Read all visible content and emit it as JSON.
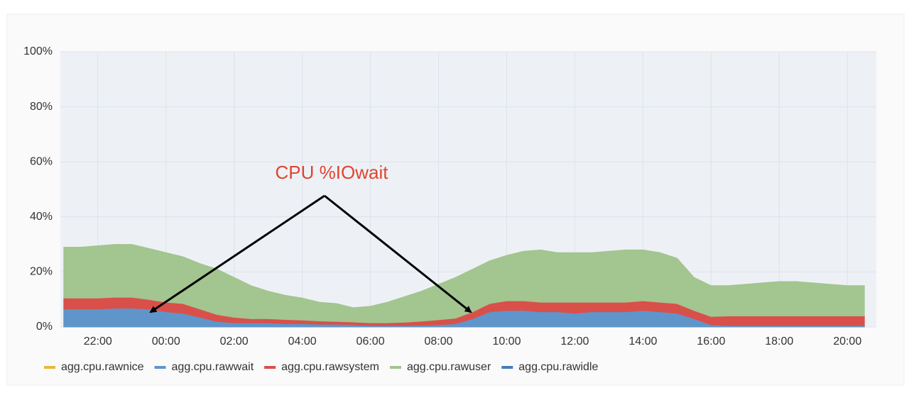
{
  "chart_data": {
    "type": "stacked-area",
    "annotation": "CPU %IOwait",
    "x": [
      21,
      21.5,
      22,
      22.5,
      23,
      23.5,
      24,
      24.5,
      25,
      25.5,
      26,
      26.5,
      27,
      27.5,
      28,
      28.5,
      29,
      29.5,
      30,
      30.5,
      31,
      31.5,
      32,
      32.5,
      33,
      33.5,
      34,
      34.5,
      35,
      35.5,
      36,
      36.5,
      37,
      37.5,
      38,
      38.5,
      39,
      39.5,
      40,
      40.5,
      41,
      41.5,
      42,
      42.5,
      43,
      43.5,
      44,
      44.5
    ],
    "xlim": [
      20.9,
      44.85
    ],
    "xticks": [
      {
        "value": 22,
        "label": "22:00"
      },
      {
        "value": 24,
        "label": "00:00"
      },
      {
        "value": 26,
        "label": "02:00"
      },
      {
        "value": 28,
        "label": "04:00"
      },
      {
        "value": 30,
        "label": "06:00"
      },
      {
        "value": 32,
        "label": "08:00"
      },
      {
        "value": 34,
        "label": "10:00"
      },
      {
        "value": 36,
        "label": "12:00"
      },
      {
        "value": 38,
        "label": "14:00"
      },
      {
        "value": 40,
        "label": "16:00"
      },
      {
        "value": 42,
        "label": "18:00"
      },
      {
        "value": 44,
        "label": "20:00"
      }
    ],
    "ylim": [
      0,
      100
    ],
    "yticks": [
      {
        "value": 0,
        "label": "0%"
      },
      {
        "value": 20,
        "label": "20%"
      },
      {
        "value": 40,
        "label": "40%"
      },
      {
        "value": 60,
        "label": "60%"
      },
      {
        "value": 80,
        "label": "80%"
      },
      {
        "value": 100,
        "label": "100%"
      }
    ],
    "grid": true,
    "legend": "bottom",
    "series": [
      {
        "name": "agg.cpu.rawnice",
        "color": "#eab839",
        "values": [
          0,
          0,
          0,
          0,
          0,
          0,
          0,
          0,
          0,
          0,
          0,
          0,
          0,
          0,
          0,
          0,
          0,
          0,
          0,
          0,
          0,
          0,
          0,
          0,
          0,
          0,
          0,
          0,
          0,
          0,
          0,
          0,
          0,
          0,
          0,
          0,
          0,
          0,
          0,
          0,
          0,
          0,
          0,
          0,
          0,
          0,
          0,
          0
        ]
      },
      {
        "name": "agg.cpu.rawwait",
        "color": "#5f95cb",
        "values": [
          6.5,
          6.5,
          6.5,
          6.8,
          6.8,
          6.5,
          5.5,
          5,
          3.5,
          2,
          1.5,
          1.5,
          1.5,
          1.2,
          1.2,
          1,
          1,
          0.8,
          0.5,
          0.5,
          0.5,
          0.6,
          0.8,
          1.2,
          3,
          5.5,
          6,
          6,
          5.5,
          5.5,
          5,
          5.5,
          5.5,
          5.5,
          6,
          5.5,
          5,
          3,
          0.8,
          0.5,
          0.5,
          0.5,
          0.5,
          0.5,
          0.5,
          0.5,
          0.5,
          0.5
        ]
      },
      {
        "name": "agg.cpu.rawsystem",
        "color": "#d9504a",
        "values": [
          4,
          4,
          4,
          4,
          4,
          3.5,
          3.5,
          3.5,
          3,
          2.5,
          2,
          1.5,
          1.5,
          1.5,
          1.3,
          1.2,
          1,
          1,
          1,
          1,
          1.2,
          1.5,
          1.8,
          2,
          2.5,
          3,
          3.5,
          3.5,
          3.5,
          3.5,
          4,
          3.5,
          3.5,
          3.5,
          3.5,
          3.5,
          3.5,
          3,
          3,
          3.5,
          3.5,
          3.5,
          3.5,
          3.5,
          3.5,
          3.5,
          3.5,
          3.5
        ]
      },
      {
        "name": "agg.cpu.rawuser",
        "color": "#a3c590",
        "values": [
          18.5,
          18.5,
          19,
          19.2,
          19.2,
          18.5,
          18,
          17,
          16.5,
          16.5,
          14.5,
          12,
          10,
          8.8,
          8,
          6.8,
          6.5,
          5.2,
          6,
          7.5,
          9.3,
          10.9,
          12.9,
          14.8,
          15.5,
          15.5,
          16.5,
          18,
          19,
          18,
          18,
          18,
          18.5,
          19,
          18.5,
          18,
          16.5,
          12,
          11.2,
          11,
          11.5,
          12,
          12.5,
          12.5,
          12,
          11.5,
          11,
          11
        ]
      },
      {
        "name": "agg.cpu.rawidle",
        "color": "#447ebc",
        "values": [
          null,
          null,
          null,
          null,
          null,
          null,
          null,
          null,
          null,
          null,
          null,
          null,
          null,
          null,
          null,
          null,
          null,
          null,
          null,
          null,
          null,
          null,
          null,
          null,
          null,
          null,
          null,
          null,
          null,
          null,
          null,
          null,
          null,
          null,
          null,
          null,
          null,
          null,
          null,
          null,
          null,
          null,
          null,
          null,
          null,
          null,
          null,
          null
        ]
      }
    ]
  }
}
